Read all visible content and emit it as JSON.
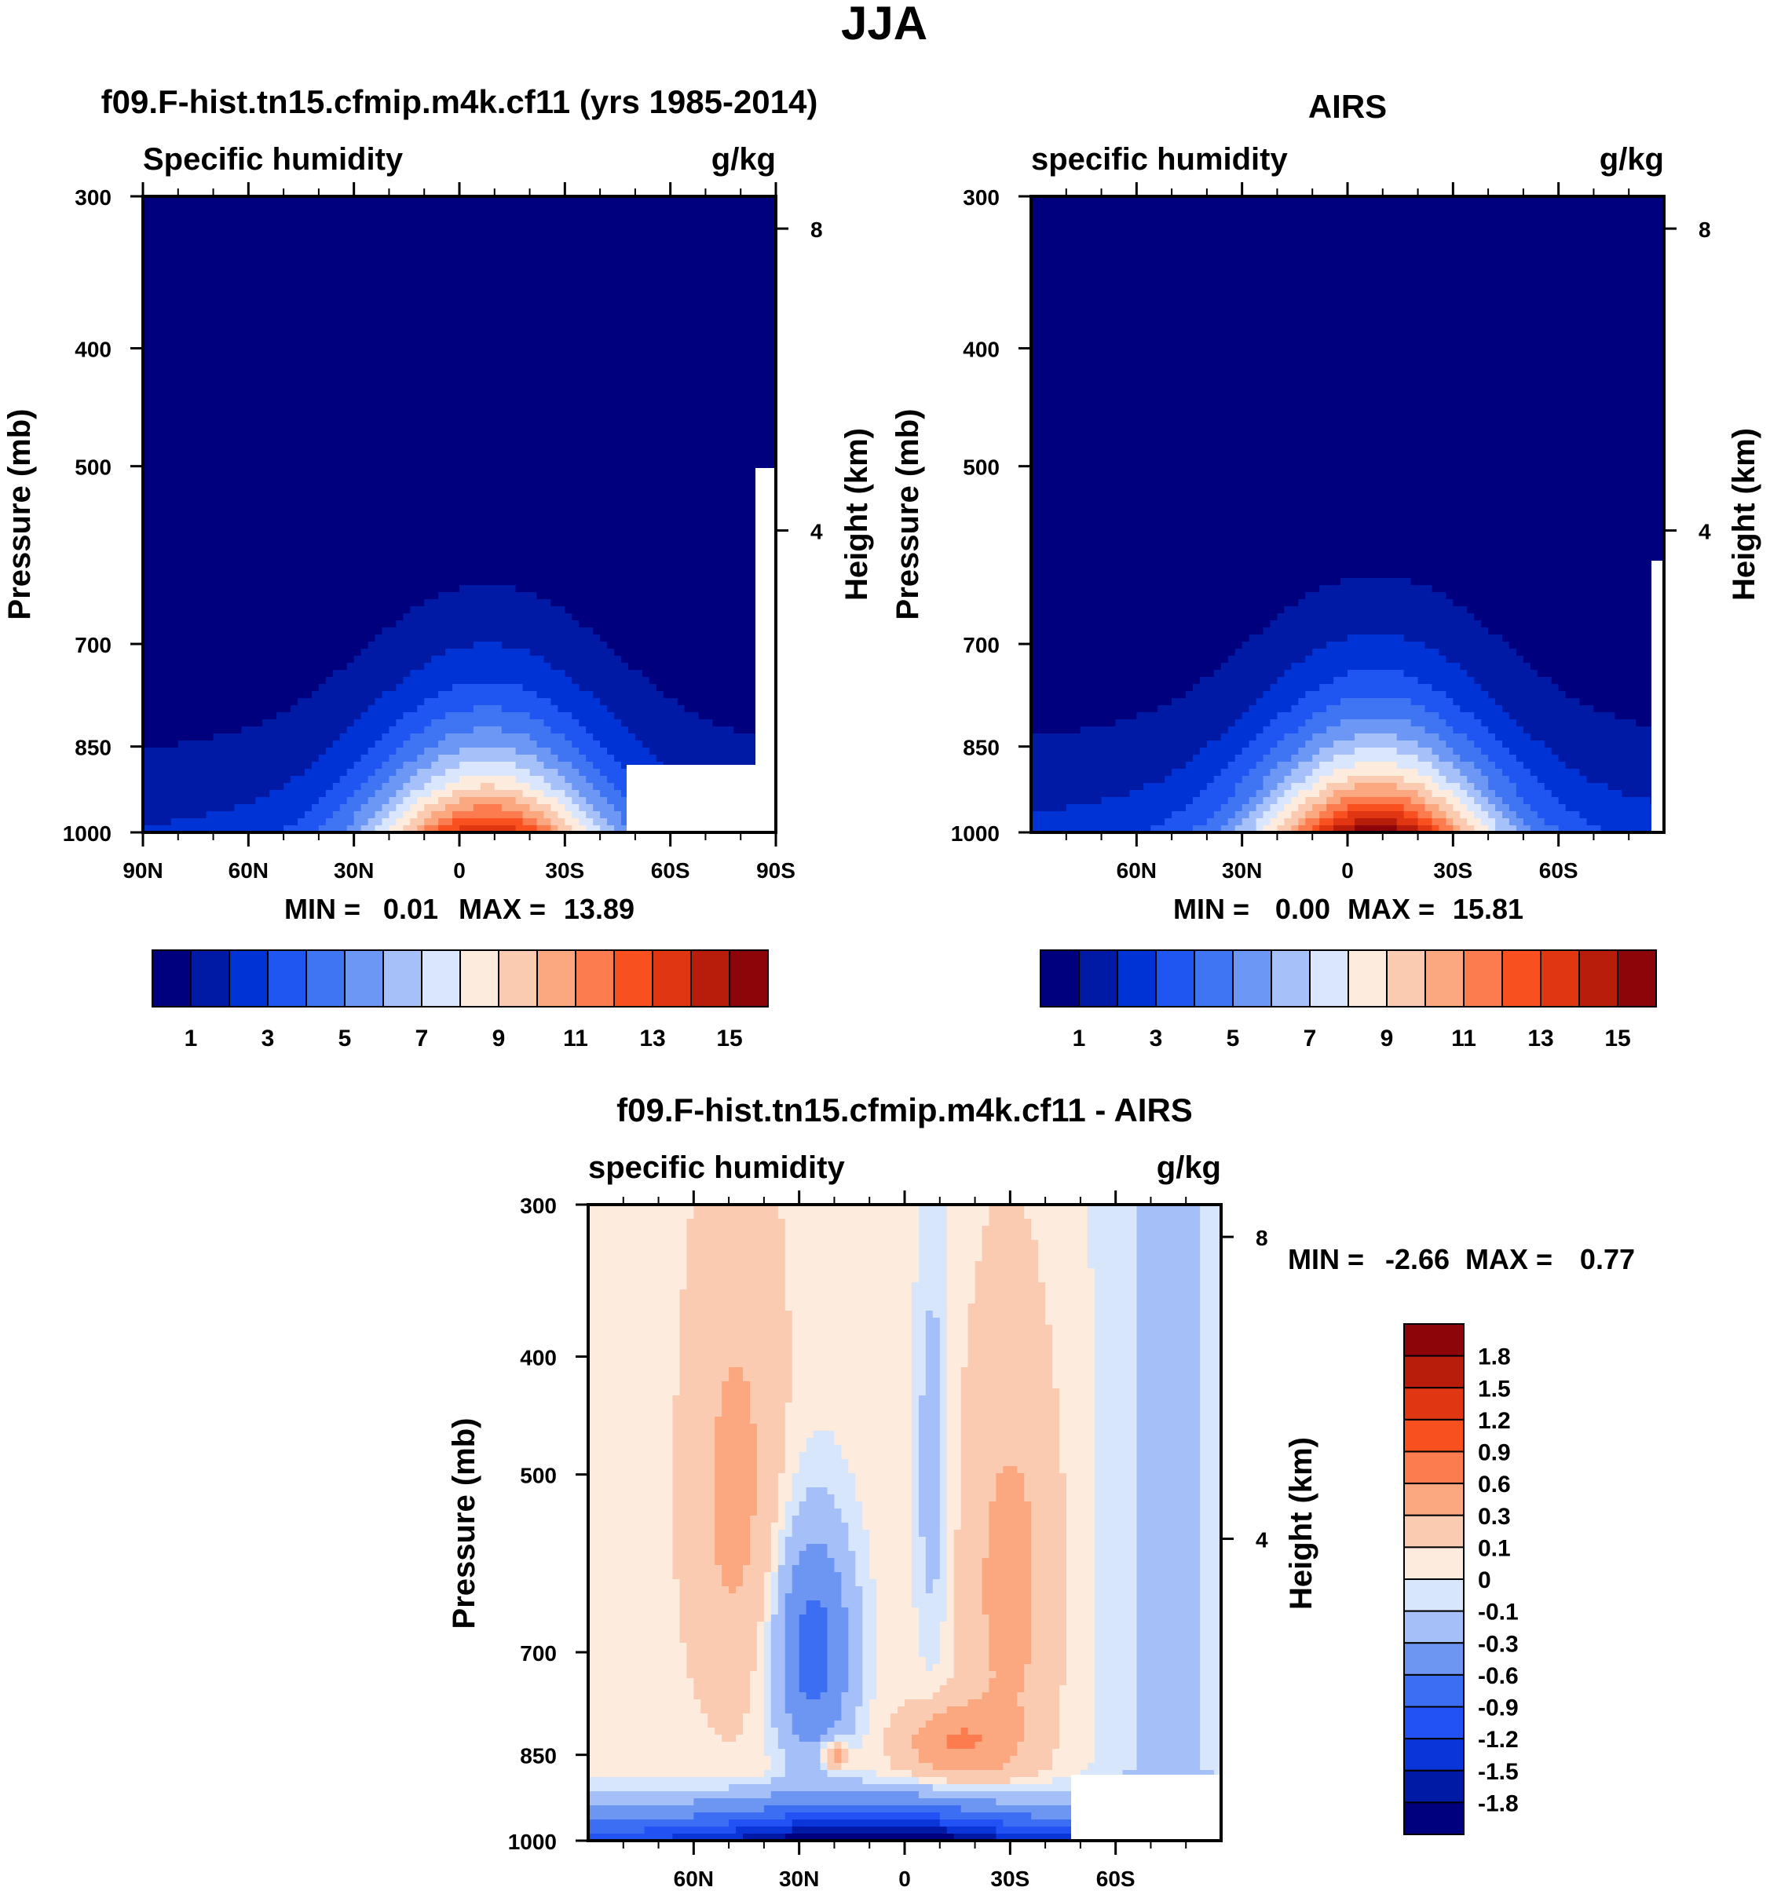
{
  "page_title": "JJA",
  "colors": {
    "seq": [
      "#00007f",
      "#001aa6",
      "#0033d6",
      "#1f55f0",
      "#3f74f2",
      "#6c97f4",
      "#a6c1fa",
      "#d9e6fd",
      "#fdebde",
      "#fbcbb1",
      "#fba780",
      "#fc7c4f",
      "#f9501f",
      "#e03612",
      "#b81d0c",
      "#8c0508"
    ],
    "diff": [
      "#00007f",
      "#001aa6",
      "#0a35d9",
      "#2252f4",
      "#3b6ef2",
      "#6d96f3",
      "#a5bff8",
      "#d7e6fb",
      "#fdebde",
      "#fbcbb1",
      "#fba780",
      "#fc7c4f",
      "#f9501f",
      "#e03612",
      "#b81d0c",
      "#8c0508"
    ],
    "missing": "#ffffff"
  },
  "chart_data": [
    {
      "id": "model",
      "type": "heatmap",
      "title": "f09.F-hist.tn15.cfmip.m4k.cf11 (yrs 1985-2014)",
      "left_string": "Specific humidity",
      "right_string": "g/kg",
      "ylabel": "Pressure (mb)",
      "ylabel_right": "Height (km)",
      "x_ticks": [
        "90N",
        "60N",
        "30N",
        "0",
        "30S",
        "60S",
        "90S"
      ],
      "x_values": [
        90,
        60,
        30,
        0,
        -30,
        -60,
        -90
      ],
      "xlim": [
        90,
        -90
      ],
      "y_ticks": [
        "300",
        "400",
        "500",
        "700",
        "850",
        "1000"
      ],
      "y_values": [
        300,
        400,
        500,
        700,
        850,
        1000
      ],
      "ylim": [
        1000,
        300
      ],
      "height_ticks": [
        "8",
        "4"
      ],
      "height_values_km": [
        8,
        4
      ],
      "min_label": "MIN =",
      "min_value": "0.01",
      "max_label": "MAX =",
      "max_value": "13.89",
      "center_lat": -8,
      "peak": 13.9,
      "wet_tail": 2.5,
      "colorbar_labels": [
        "1",
        "3",
        "5",
        "7",
        "9",
        "11",
        "13",
        "15"
      ],
      "colorbar_levels": [
        1,
        2,
        3,
        4,
        5,
        6,
        7,
        8,
        9,
        10,
        11,
        12,
        13,
        14,
        15
      ]
    },
    {
      "id": "obs",
      "type": "heatmap",
      "title": "AIRS",
      "left_string": "specific humidity",
      "right_string": "g/kg",
      "ylabel": "Pressure (mb)",
      "ylabel_right": "Height (km)",
      "x_ticks": [
        "60N",
        "30N",
        "0",
        "30S",
        "60S"
      ],
      "x_values": [
        60,
        30,
        0,
        -30,
        -60
      ],
      "xlim": [
        90,
        -90
      ],
      "y_ticks": [
        "300",
        "400",
        "500",
        "700",
        "850",
        "1000"
      ],
      "y_values": [
        300,
        400,
        500,
        700,
        850,
        1000
      ],
      "ylim": [
        1000,
        300
      ],
      "height_ticks": [
        "8",
        "4"
      ],
      "height_values_km": [
        8,
        4
      ],
      "min_label": "MIN =",
      "min_value": "0.00",
      "max_label": "MAX =",
      "max_value": "15.81",
      "center_lat": -8,
      "peak": 15.8,
      "wet_tail": 2.5,
      "colorbar_labels": [
        "1",
        "3",
        "5",
        "7",
        "9",
        "11",
        "13",
        "15"
      ],
      "colorbar_levels": [
        1,
        2,
        3,
        4,
        5,
        6,
        7,
        8,
        9,
        10,
        11,
        12,
        13,
        14,
        15
      ]
    },
    {
      "id": "diff",
      "type": "heatmap",
      "title": "f09.F-hist.tn15.cfmip.m4k.cf11 - AIRS",
      "left_string": "specific humidity",
      "right_string": "g/kg",
      "ylabel": "Pressure (mb)",
      "ylabel_right": "Height (km)",
      "x_ticks": [
        "60N",
        "30N",
        "0",
        "30S",
        "60S"
      ],
      "x_values": [
        60,
        30,
        0,
        -30,
        -60
      ],
      "xlim": [
        90,
        -90
      ],
      "y_ticks": [
        "300",
        "400",
        "500",
        "700",
        "850",
        "1000"
      ],
      "y_values": [
        300,
        400,
        500,
        700,
        850,
        1000
      ],
      "ylim": [
        1000,
        300
      ],
      "height_ticks": [
        "8",
        "4"
      ],
      "height_values_km": [
        8,
        4
      ],
      "min_label": "MIN =",
      "min_value": "-2.66",
      "max_label": "MAX =",
      "max_value": "0.77",
      "colorbar_labels": [
        "1.8",
        "1.5",
        "1.2",
        "0.9",
        "0.6",
        "0.3",
        "0.1",
        "0",
        "-0.1",
        "-0.3",
        "-0.6",
        "-0.9",
        "-1.2",
        "-1.5",
        "-1.8"
      ],
      "colorbar_levels": [
        -1.8,
        -1.5,
        -1.2,
        -0.9,
        -0.6,
        -0.3,
        -0.1,
        0,
        0.1,
        0.3,
        0.6,
        0.9,
        1.2,
        1.5,
        1.8
      ]
    }
  ]
}
